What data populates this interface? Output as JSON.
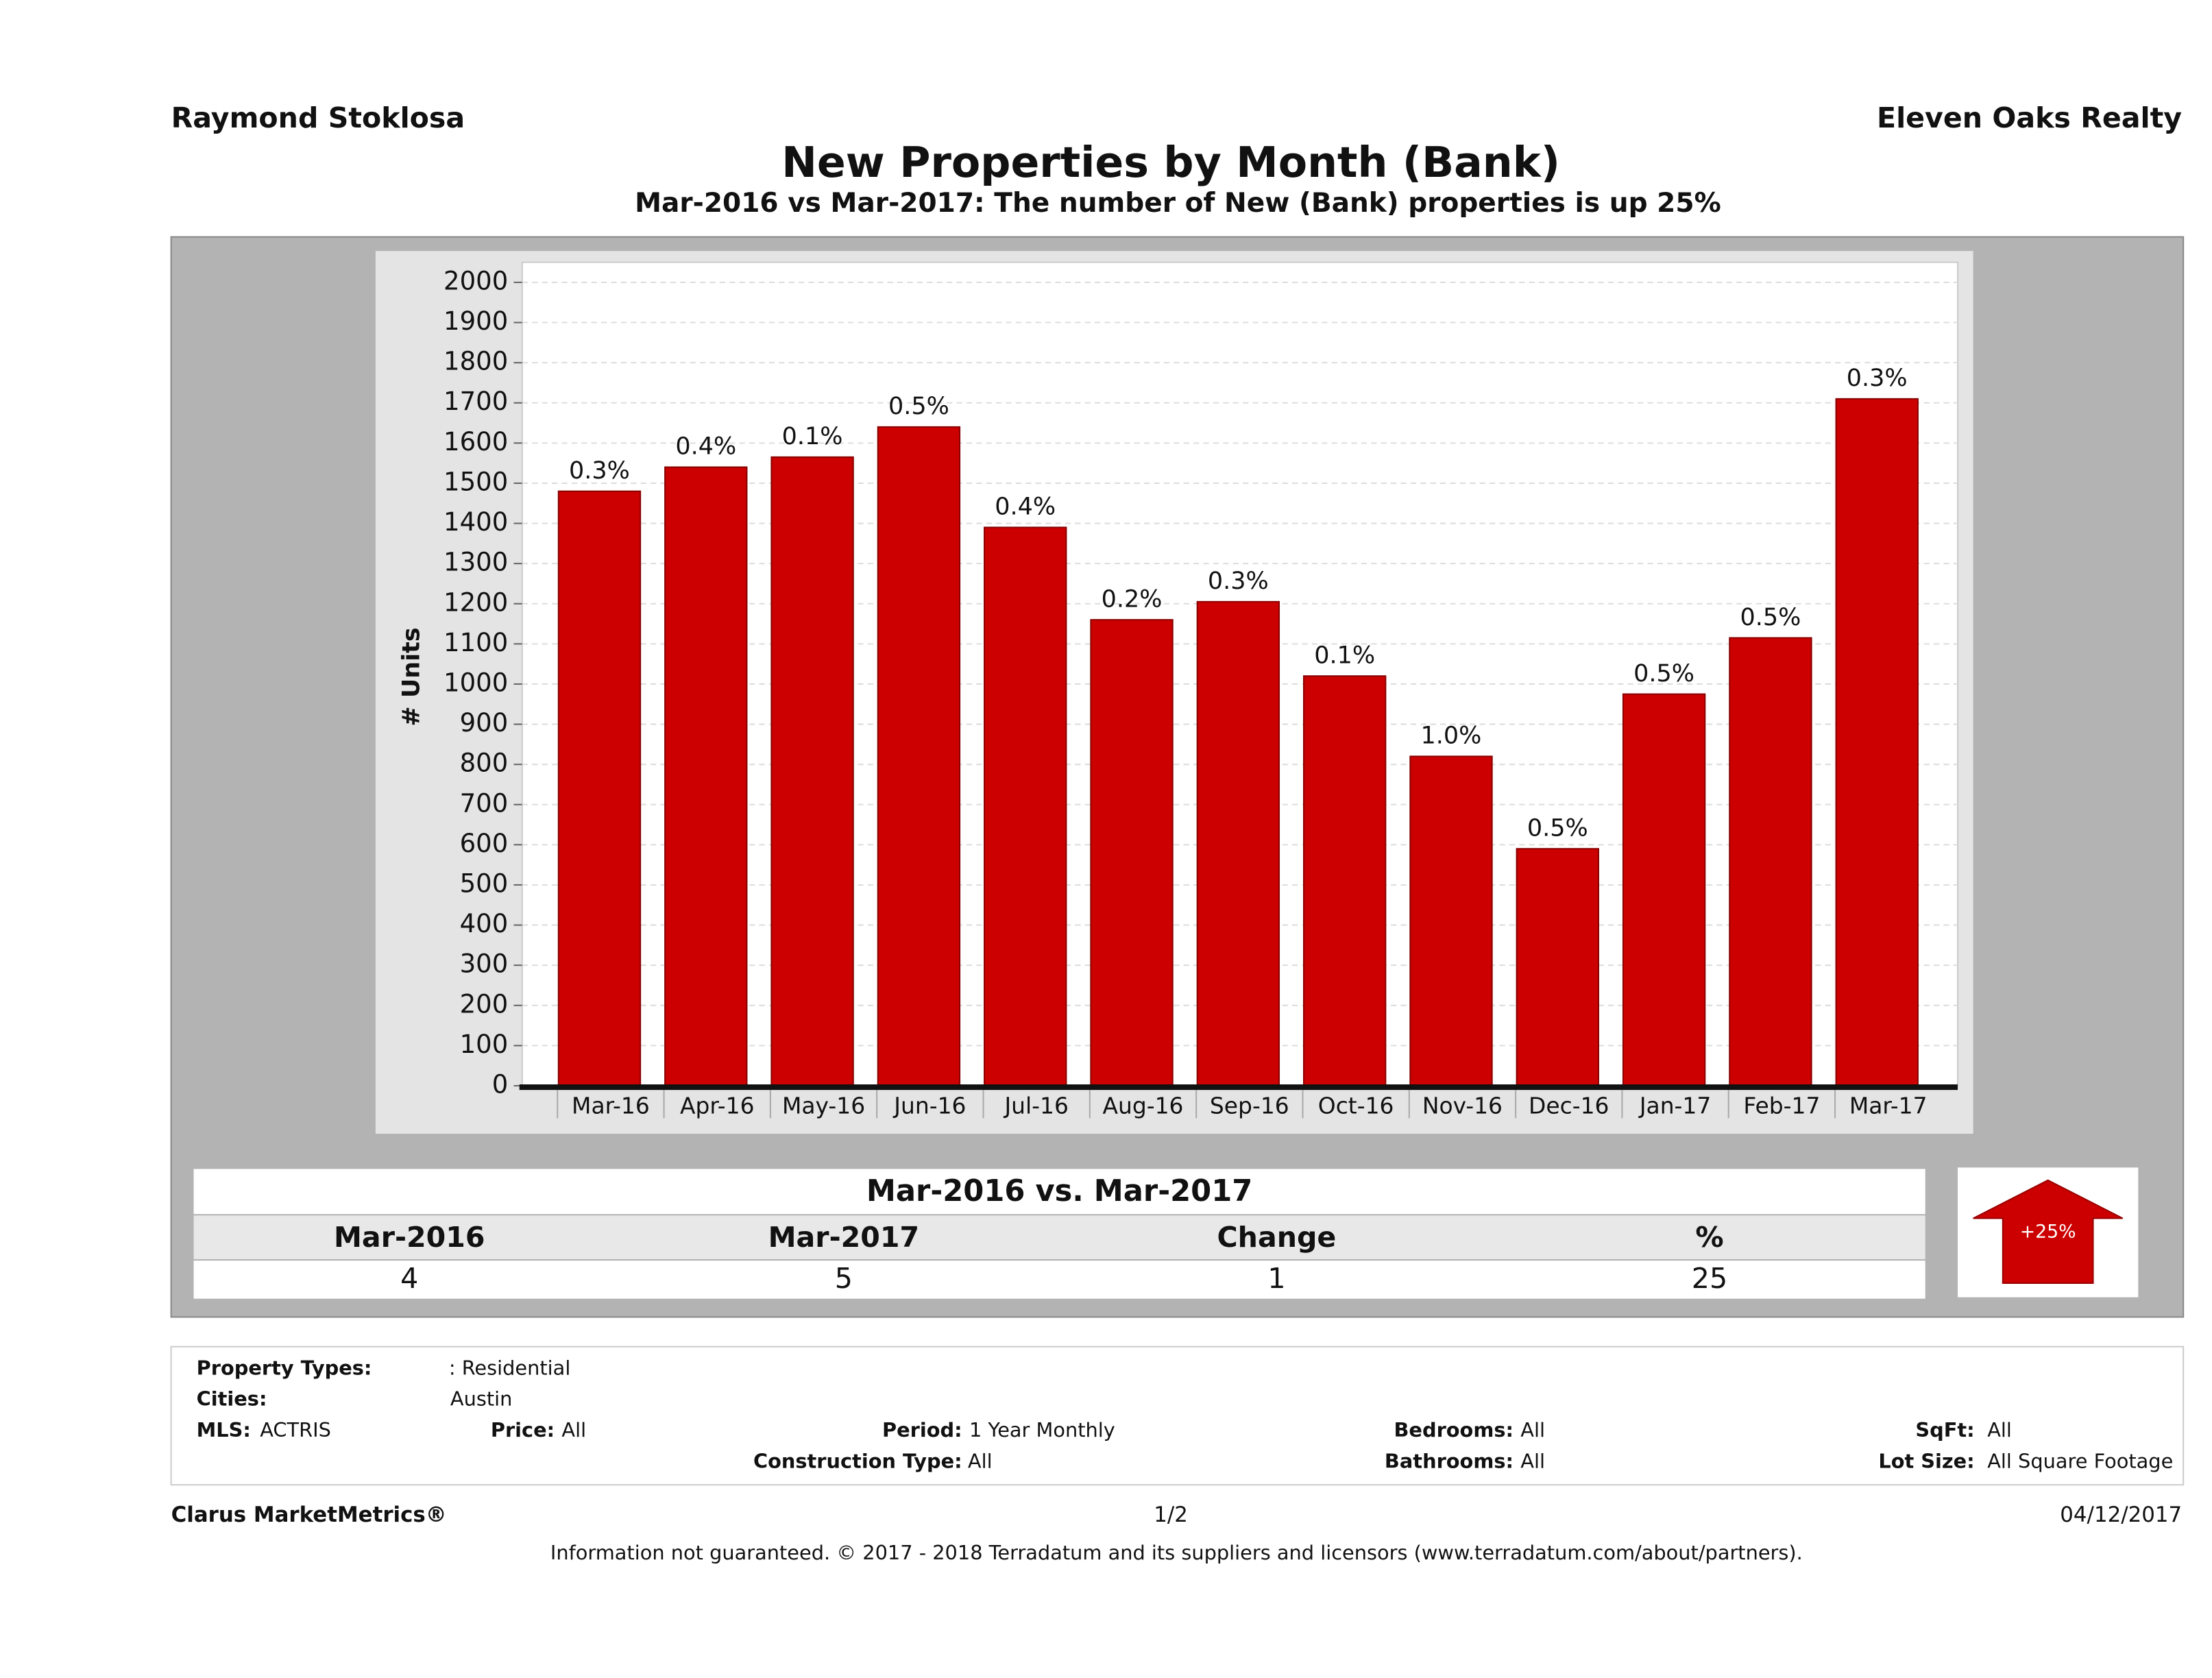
{
  "header": {
    "left": "Raymond Stoklosa",
    "right": "Eleven Oaks Realty"
  },
  "chart_data": {
    "type": "bar",
    "title": "New Properties by Month (Bank)",
    "subtitle": "Mar-2016 vs Mar-2017: The number of New (Bank)  properties is up 25%",
    "y_label": "# Units",
    "categories": [
      "Mar-16",
      "Apr-16",
      "May-16",
      "Jun-16",
      "Jul-16",
      "Aug-16",
      "Sep-16",
      "Oct-16",
      "Nov-16",
      "Dec-16",
      "Jan-17",
      "Feb-17",
      "Mar-17"
    ],
    "values": [
      1480,
      1540,
      1565,
      1640,
      1390,
      1160,
      1205,
      1020,
      820,
      590,
      975,
      1115,
      1710
    ],
    "bar_labels": [
      "0.3%",
      "0.4%",
      "0.1%",
      "0.5%",
      "0.4%",
      "0.2%",
      "0.3%",
      "0.1%",
      "1.0%",
      "0.5%",
      "0.5%",
      "0.5%",
      "0.3%"
    ],
    "color": "#cc0000",
    "ylim": [
      0,
      2050
    ],
    "yticks": [
      0,
      100,
      200,
      300,
      400,
      500,
      600,
      700,
      800,
      900,
      1000,
      1100,
      1200,
      1300,
      1400,
      1500,
      1600,
      1700,
      1800,
      1900,
      2000
    ],
    "grid": true
  },
  "summary": {
    "title": "Mar-2016 vs. Mar-2017",
    "headers": [
      "Mar-2016",
      "Mar-2017",
      "Change",
      "%"
    ],
    "values": [
      4,
      5,
      1,
      25
    ],
    "badge": "+25%"
  },
  "filters": {
    "property_types": {
      "label": "Property Types:",
      "value": ": Residential"
    },
    "cities": {
      "label": "Cities:",
      "value": "Austin"
    },
    "mls": {
      "label": "MLS:",
      "value": "ACTRIS"
    },
    "price": {
      "label": "Price:",
      "value": "All"
    },
    "period": {
      "label": "Period:",
      "value": "1 Year Monthly"
    },
    "bedrooms": {
      "label": "Bedrooms:",
      "value": "All"
    },
    "sqft": {
      "label": "SqFt:",
      "value": "All"
    },
    "construction": {
      "label": "Construction Type:",
      "value": "All"
    },
    "bathrooms": {
      "label": "Bathrooms:",
      "value": "All"
    },
    "lot_size": {
      "label": "Lot Size:",
      "value": "All Square Footage"
    }
  },
  "footer": {
    "brand": "Clarus MarketMetrics®",
    "page": "1/2",
    "date": "04/12/2017",
    "disclaimer": "Information not guaranteed. © 2017 - 2018 Terradatum and its suppliers and licensors (www.terradatum.com/about/partners)."
  }
}
